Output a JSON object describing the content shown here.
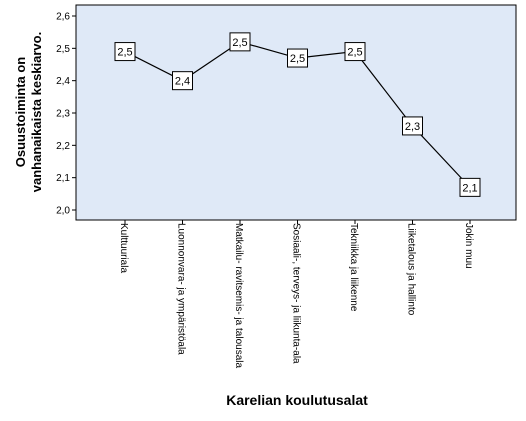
{
  "chart_data": {
    "type": "line",
    "categories": [
      "Kulttuuriala",
      "Luonnonvara- ja ympäristöala",
      "Matkailu- ravitsemis- ja talousala",
      "Sosiaali-, terveys- ja liikunta-ala",
      "Tekniikka ja liikenne",
      "Liiketalous ja hallinto",
      "Jokin muu"
    ],
    "values": [
      2.49,
      2.4,
      2.52,
      2.47,
      2.49,
      2.26,
      2.07
    ],
    "data_labels": [
      "2,5",
      "2,4",
      "2,5",
      "2,5",
      "2,5",
      "2,3",
      "2,1"
    ],
    "ylabel_line1": "Osuustoiminta on",
    "ylabel_line2": "vanhanaikaista keskiarvo.",
    "xlabel": "Karelian koulutusalat",
    "ylim": [
      2.0,
      2.6
    ],
    "yticks": [
      "2,0",
      "2,1",
      "2,2",
      "2,3",
      "2,4",
      "2,5",
      "2,6"
    ],
    "grid": false,
    "colors": {
      "plot_background": "#dfe9f7",
      "line": "#000000",
      "marker_fill": "#ffffff"
    }
  }
}
